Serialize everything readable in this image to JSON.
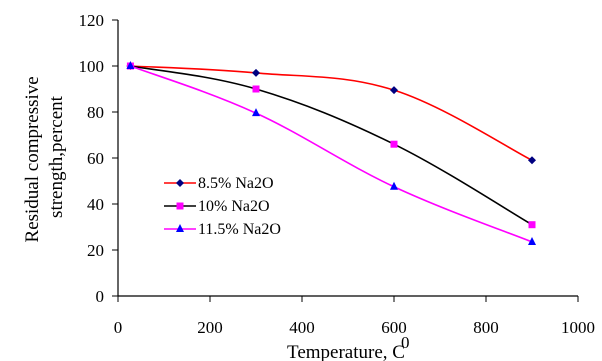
{
  "chart_data": {
    "type": "line",
    "xlabel": "Temperature,  C",
    "xlabel_superscript": "0",
    "ylabel_lines": [
      "Residual compressive",
      "strength,percent"
    ],
    "xlim": [
      0,
      1000
    ],
    "ylim": [
      0,
      120
    ],
    "xticks": [
      0,
      200,
      400,
      600,
      800,
      1000
    ],
    "yticks": [
      0,
      20,
      40,
      60,
      80,
      100,
      120
    ],
    "x_tick_labels": [
      "0",
      "200",
      "400",
      "600",
      "800",
      "1000"
    ],
    "y_tick_labels": [
      "0",
      "20",
      "40",
      "60",
      "80",
      "100",
      "120"
    ],
    "grid": false,
    "legend_position": "left-center",
    "series": [
      {
        "name": "8.5% Na2O",
        "color": "#ff0000",
        "marker": "diamond",
        "marker_color": "#000080",
        "x": [
          27,
          300,
          600,
          900
        ],
        "y": [
          100,
          97,
          89.5,
          59
        ]
      },
      {
        "name": "10% Na2O",
        "color": "#000000",
        "marker": "square",
        "marker_color": "#ff00ff",
        "x": [
          27,
          300,
          600,
          900
        ],
        "y": [
          100,
          90,
          66,
          31
        ]
      },
      {
        "name": "11.5% Na2O",
        "color": "#ff00ff",
        "marker": "triangle",
        "marker_color": "#0000ff",
        "x": [
          27,
          300,
          600,
          900
        ],
        "y": [
          100,
          79.5,
          47.5,
          23.5
        ]
      }
    ]
  }
}
